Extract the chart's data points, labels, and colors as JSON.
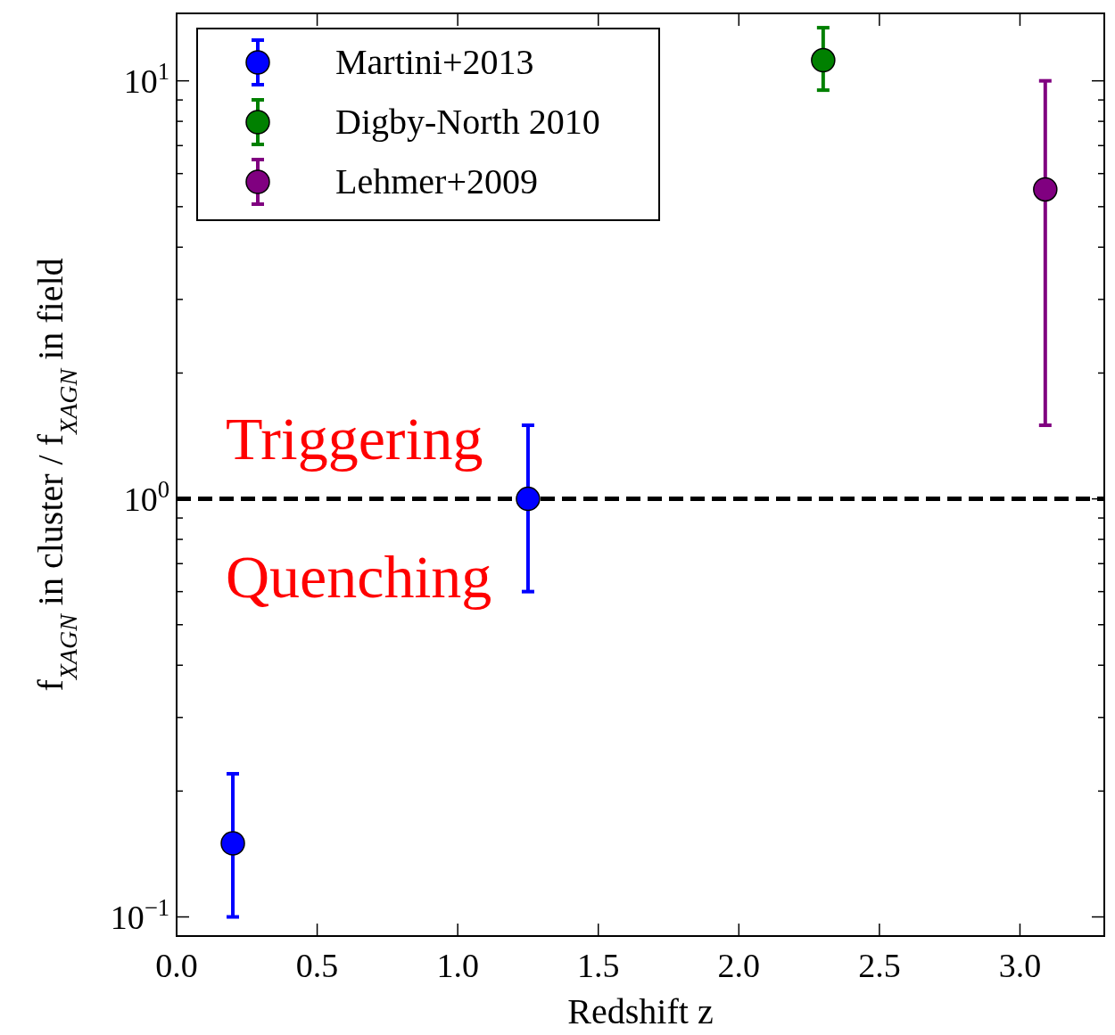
{
  "chart_data": {
    "type": "scatter",
    "xlabel": "Redshift z",
    "ylabel": "f$_{XAGN}$ in cluster / f$_{XAGN}$ in field",
    "log": "y",
    "xlim": [
      0,
      3.3
    ],
    "ylim": [
      0.09,
      14.5
    ],
    "xticks": [
      {
        "value": 0,
        "label": "0.0"
      },
      {
        "value": 0.5,
        "label": "0.5"
      },
      {
        "value": 1,
        "label": "1.0"
      },
      {
        "value": 1.5,
        "label": "1.5"
      },
      {
        "value": 2,
        "label": "2.0"
      },
      {
        "value": 2.5,
        "label": "2.5"
      },
      {
        "value": 3,
        "label": "3.0"
      }
    ],
    "yticks": [
      {
        "value": 0.1,
        "label": "10$^{−1}$"
      },
      {
        "value": 0.2,
        "label": null
      },
      {
        "value": 0.3,
        "label": null
      },
      {
        "value": 0.4,
        "label": null
      },
      {
        "value": 0.5,
        "label": null
      },
      {
        "value": 0.6,
        "label": null
      },
      {
        "value": 0.7,
        "label": null
      },
      {
        "value": 0.8,
        "label": null
      },
      {
        "value": 0.9,
        "label": null
      },
      {
        "value": 1,
        "label": "10$^{0}$"
      },
      {
        "value": 2,
        "label": null
      },
      {
        "value": 3,
        "label": null
      },
      {
        "value": 4,
        "label": null
      },
      {
        "value": 5,
        "label": null
      },
      {
        "value": 6,
        "label": null
      },
      {
        "value": 7,
        "label": null
      },
      {
        "value": 8,
        "label": null
      },
      {
        "value": 9,
        "label": null
      },
      {
        "value": 10,
        "label": "10$^{1}$"
      }
    ],
    "series": [
      {
        "name": "Martini+2013",
        "color": "#0000ff",
        "x": [
          0.2,
          1.25
        ],
        "values": [
          0.15,
          1.0
        ],
        "errors": [
          [
            0.1,
            0.22
          ],
          [
            0.6,
            1.5
          ]
        ]
      },
      {
        "name": "Digby-North 2010",
        "color": "#008000",
        "x": [
          2.3
        ],
        "values": [
          11.2
        ],
        "errors": [
          [
            9.5,
            13.4
          ]
        ]
      },
      {
        "name": "Lehmer+2009",
        "color": "#800080",
        "x": [
          3.09
        ],
        "values": [
          5.5
        ],
        "errors": [
          [
            1.5,
            10
          ]
        ]
      }
    ],
    "marker": "circle",
    "legend": "top left",
    "grid": false,
    "ref_lines": [
      {
        "axis": "y",
        "value": 1,
        "color": "#000000",
        "line_style": "dashed"
      }
    ],
    "annotations": [
      "Triggering",
      "Quenching"
    ]
  }
}
